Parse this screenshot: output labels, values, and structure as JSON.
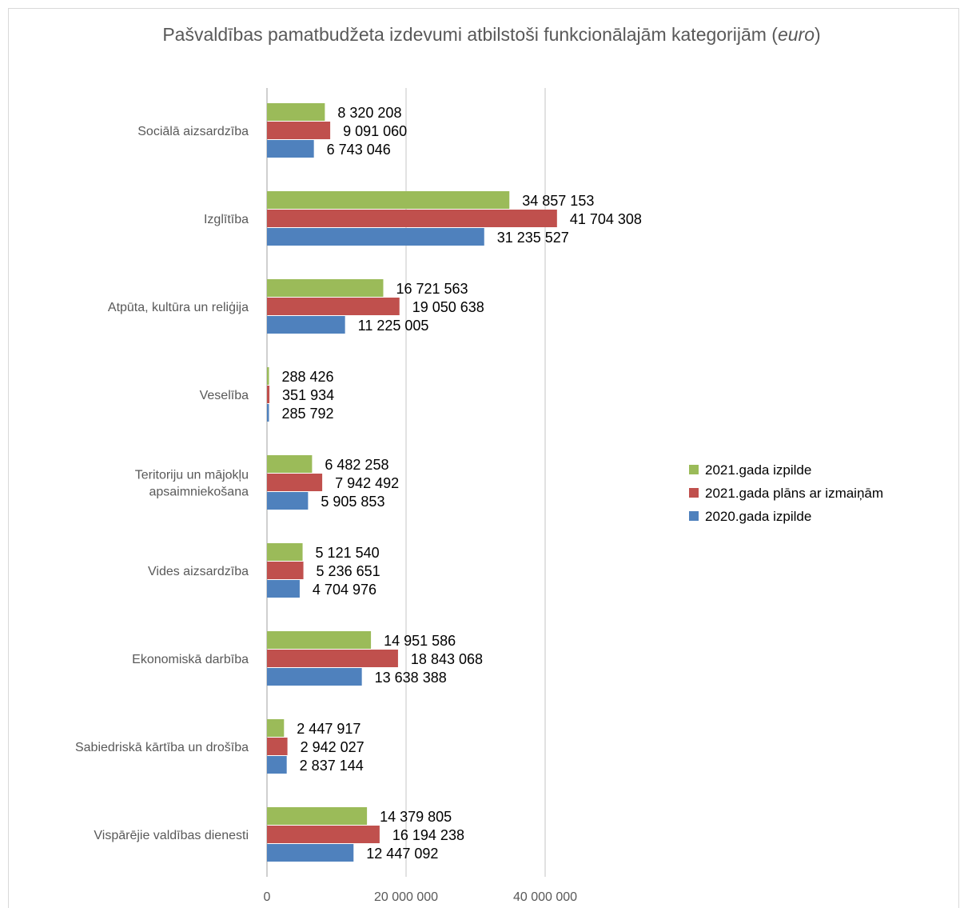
{
  "chart_data": {
    "type": "bar",
    "orientation": "horizontal",
    "title_main": "Pašvaldības pamatbudžeta izdevumi atbilstoši funkcionālajām kategorijām (",
    "title_unit": "euro",
    "title_close": ")",
    "categories": [
      [
        "Sociālā aizsardzība"
      ],
      [
        "Izglītība"
      ],
      [
        "Atpūta, kultūra un reliģija"
      ],
      [
        "Veselība"
      ],
      [
        "Teritoriju un mājokļu",
        "apsaimniekošana"
      ],
      [
        "Vides aizsardzība"
      ],
      [
        "Ekonomiskā darbība"
      ],
      [
        "Sabiedriskā kārtība un drošība"
      ],
      [
        "Vispārējie valdības dienesti"
      ]
    ],
    "series": [
      {
        "name": "2021.gada izpilde",
        "color": "#9bbb59",
        "values": [
          8320208,
          34857153,
          16721563,
          288426,
          6482258,
          5121540,
          14951586,
          2447917,
          14379805
        ],
        "labels": [
          "8 320 208",
          "34 857 153",
          "16 721 563",
          "288 426",
          "6 482 258",
          "5 121 540",
          "14 951 586",
          "2 447 917",
          "14 379 805"
        ]
      },
      {
        "name": "2021.gada plāns ar izmaiņām",
        "color": "#c0504d",
        "values": [
          9091060,
          41704308,
          19050638,
          351934,
          7942492,
          5236651,
          18843068,
          2942027,
          16194238
        ],
        "labels": [
          "9 091 060",
          "41 704 308",
          "19 050 638",
          "351 934",
          "7 942 492",
          "5 236 651",
          "18 843 068",
          "2 942 027",
          "16 194 238"
        ]
      },
      {
        "name": "2020.gada izpilde",
        "color": "#4f81bd",
        "values": [
          6743046,
          31235527,
          11225005,
          285792,
          5905853,
          4704976,
          13638388,
          2837144,
          12447092
        ],
        "labels": [
          "6 743 046",
          "31 235 527",
          "11 225 005",
          "285 792",
          "5 905 853",
          "4 704 976",
          "13 638 388",
          "2 837 144",
          "12 447 092"
        ]
      }
    ],
    "x_ticks": [
      0,
      20000000,
      40000000
    ],
    "x_tick_labels": [
      "0",
      "20 000 000",
      "40 000 000"
    ],
    "xlim": [
      0,
      40000000
    ],
    "gridlines": true,
    "legend_position": "right"
  }
}
